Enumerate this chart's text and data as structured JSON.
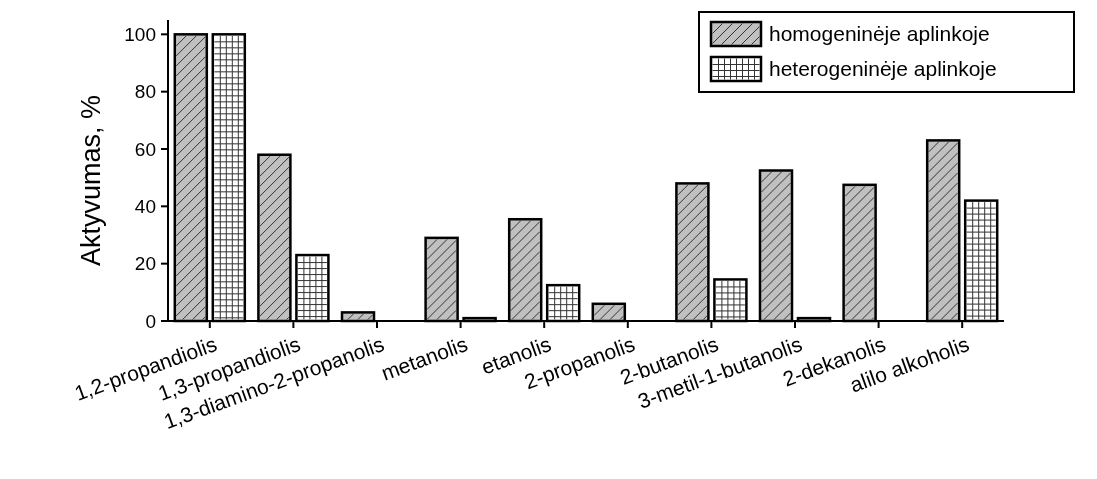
{
  "chart_data": {
    "type": "bar",
    "ylabel": "Aktyvumas, %",
    "categories": [
      "1,2-propandiolis",
      "1,3-propandiolis",
      "1,3-diamino-2-propanolis",
      "metanolis",
      "etanolis",
      "2-propanolis",
      "2-butanolis",
      "3-metil-1-butanolis",
      "2-dekanolis",
      "alilo alkoholis"
    ],
    "series": [
      {
        "name": "homogeninėje aplinkoje",
        "color": "#c0c0c0",
        "values": [
          100,
          58,
          3,
          29,
          35.5,
          6,
          48,
          52.5,
          47.5,
          63
        ]
      },
      {
        "name": "heterogeninėje aplinkoje",
        "color": "#ffffff",
        "values": [
          100,
          23,
          null,
          1,
          12.5,
          null,
          14.5,
          1,
          null,
          42
        ]
      }
    ],
    "ylim": [
      0,
      105
    ],
    "yticks": [
      0,
      20,
      40,
      60,
      80,
      100
    ],
    "legend": "top right",
    "grid": false
  }
}
